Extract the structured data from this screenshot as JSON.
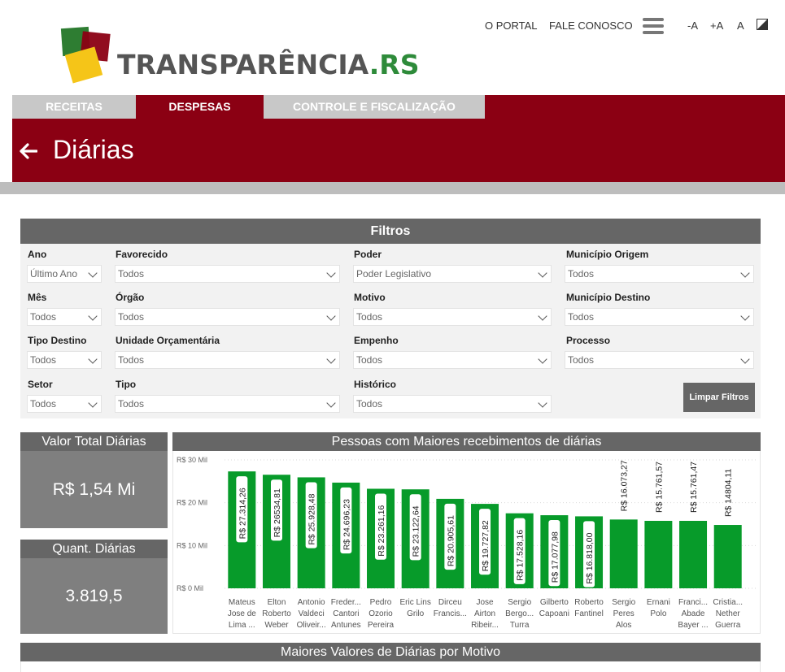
{
  "header": {
    "logo_text": "TRANSPARÊNCIA",
    "logo_suffix": ".RS",
    "nav": [
      "O PORTAL",
      "FALE CONOSCO"
    ],
    "menu_icon": "hamburger-icon",
    "accessibility": [
      "-A",
      "+A",
      "A"
    ],
    "contrast_icon": "contrast-icon"
  },
  "tabs": [
    {
      "label": "RECEITAS",
      "active": false
    },
    {
      "label": "DESPESAS",
      "active": true
    },
    {
      "label": "CONTROLE E FISCALIZAÇÃO",
      "active": false
    }
  ],
  "page": {
    "title": "Diárias",
    "back_icon": "arrow-left-icon"
  },
  "filters": {
    "title": "Filtros",
    "fields": [
      {
        "label": "Ano",
        "value": "Último Ano"
      },
      {
        "label": "Favorecido",
        "value": "Todos"
      },
      {
        "label": "Poder",
        "value": "Poder Legislativo"
      },
      {
        "label": "Município Origem",
        "value": "Todos"
      },
      {
        "label": "Mês",
        "value": "Todos"
      },
      {
        "label": "Órgão",
        "value": "Todos"
      },
      {
        "label": "Motivo",
        "value": "Todos"
      },
      {
        "label": "Município Destino",
        "value": "Todos"
      },
      {
        "label": "Tipo Destino",
        "value": "Todos"
      },
      {
        "label": "Unidade Orçamentária",
        "value": "Todos"
      },
      {
        "label": "Empenho",
        "value": "Todos"
      },
      {
        "label": "Processo",
        "value": "Todos"
      },
      {
        "label": "Setor",
        "value": "Todos"
      },
      {
        "label": "Tipo",
        "value": "Todos"
      },
      {
        "label": "Histórico",
        "value": "Todos"
      }
    ],
    "clear_label": "Limpar Filtros"
  },
  "cards": {
    "total": {
      "title": "Valor Total Diárias",
      "value": "R$ 1,54 Mi"
    },
    "quantity": {
      "title": "Quant. Diárias",
      "value": "3.819,5"
    }
  },
  "motivo_section": {
    "title": "Maiores Valores de Diárias por Motivo"
  },
  "chart_data": {
    "type": "bar",
    "title": "Pessoas com Maiores recebimentos de diárias",
    "ylim": [
      0,
      30000
    ],
    "yticks": [
      "R$ 0 Mil",
      "R$ 10 Mil",
      "R$ 20 Mil",
      "R$ 30 Mil"
    ],
    "grid": true,
    "bar_color": "#079b2a",
    "categories": [
      [
        "Mateus",
        "Jose de",
        "Lima ..."
      ],
      [
        "Elton",
        "Roberto",
        "Weber"
      ],
      [
        "Antonio",
        "Valdeci",
        "Oliveir..."
      ],
      [
        "Freder...",
        "Cantori",
        "Antunes"
      ],
      [
        "Pedro",
        "Ozorio",
        "Pereira"
      ],
      [
        "Eric Lins",
        "Grilo"
      ],
      [
        "Dirceu",
        "Francis..."
      ],
      [
        "Jose",
        "Airton",
        "Ribeir..."
      ],
      [
        "Sergio",
        "Bergo...",
        "Turra"
      ],
      [
        "Gilberto",
        "Capoani"
      ],
      [
        "Roberto",
        "Fantinel"
      ],
      [
        "Sergio",
        "Peres",
        "Alos"
      ],
      [
        "Ernani",
        "Polo"
      ],
      [
        "Franci...",
        "Abade",
        "Bayer ..."
      ],
      [
        "Cristia...",
        "Nether",
        "Guerra"
      ]
    ],
    "values": [
      27314.26,
      26534.81,
      25928.48,
      24696.23,
      23261.16,
      23122.64,
      20905.61,
      19727.82,
      17528.16,
      17077.98,
      16818.0,
      16073.27,
      15761.57,
      15761.47,
      14804.11
    ],
    "labels": [
      "R$ 27.314,26",
      "R$ 26534,81",
      "R$ 25.928,48",
      "R$ 24.696,23",
      "R$ 23.261,16",
      "R$ 23.122,64",
      "R$ 20.905,61",
      "R$ 19.727,82",
      "R$ 17.528,16",
      "R$ 17.077,98",
      "R$ 16.818,00",
      "R$ 16.073,27",
      "R$ 15.761,57",
      "R$ 15.761,47",
      "R$ 14804,11"
    ]
  }
}
